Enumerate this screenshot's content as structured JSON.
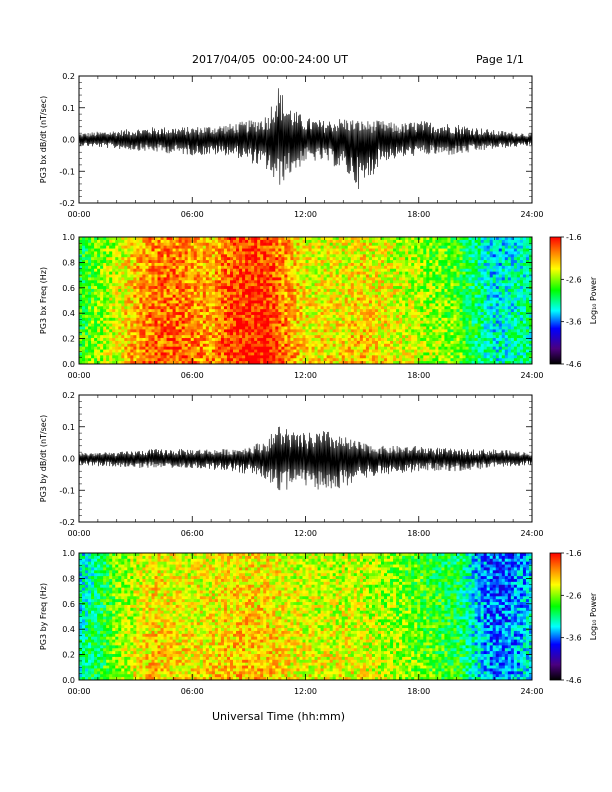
{
  "header": {
    "title": "2017/04/05  00:00-24:00 UT",
    "page": "Page 1/1"
  },
  "xlabel": "Universal Time (hh:mm)",
  "colors": {
    "waveform": "#000000",
    "colormap": [
      "#000000",
      "#4b007f",
      "#0000ff",
      "#00ffff",
      "#00ff00",
      "#ffff00",
      "#ff7f00",
      "#ff0000"
    ]
  },
  "colorbar": {
    "label": "Log₁₀ Power",
    "ticks": [
      "-1.6",
      "-2.6",
      "-3.6",
      "-4.6"
    ],
    "range": [
      -4.6,
      -1.6
    ]
  },
  "chart_data": [
    {
      "type": "line",
      "ylabel": "PG3 bx dB/dt (nT/sec)",
      "xlim": [
        0,
        24
      ],
      "ylim": [
        -0.2,
        0.2
      ],
      "xticks": [
        "00:00",
        "06:00",
        "12:00",
        "18:00",
        "24:00"
      ],
      "yticks": [
        "0.2",
        "0.1",
        "0.0",
        "-0.1",
        "-0.2"
      ],
      "envelope": {
        "hours": [
          0,
          2,
          4,
          6,
          8,
          9,
          10,
          10.5,
          11,
          11.5,
          12,
          13,
          14,
          15,
          16,
          17,
          18,
          20,
          22,
          24
        ],
        "upper": [
          0.02,
          0.03,
          0.04,
          0.04,
          0.05,
          0.06,
          0.08,
          0.18,
          0.12,
          0.09,
          0.07,
          0.06,
          0.07,
          0.06,
          0.06,
          0.05,
          0.06,
          0.05,
          0.03,
          0.02
        ],
        "lower": [
          -0.02,
          -0.03,
          -0.04,
          -0.05,
          -0.05,
          -0.07,
          -0.1,
          -0.16,
          -0.12,
          -0.1,
          -0.07,
          -0.07,
          -0.1,
          -0.17,
          -0.07,
          -0.06,
          -0.05,
          -0.05,
          -0.03,
          -0.02
        ]
      }
    },
    {
      "type": "heatmap",
      "ylabel": "PG3 bx Freq (Hz)",
      "xlim": [
        0,
        24
      ],
      "ylim": [
        0,
        1
      ],
      "xticks": [
        "00:00",
        "06:00",
        "12:00",
        "18:00",
        "24:00"
      ],
      "yticks": [
        "1.0",
        "0.8",
        "0.6",
        "0.4",
        "0.2",
        "0.0"
      ],
      "power_profile": {
        "hours": [
          0,
          1,
          2,
          3,
          4,
          5,
          6,
          7,
          8,
          9,
          10,
          11,
          12,
          13,
          14,
          15,
          16,
          17,
          18,
          19,
          20,
          21,
          22,
          23,
          24
        ],
        "log_power": [
          -3.2,
          -2.9,
          -2.7,
          -2.4,
          -2.2,
          -2.2,
          -2.3,
          -2.4,
          -2.1,
          -2.0,
          -2.0,
          -2.3,
          -2.6,
          -2.6,
          -2.6,
          -2.5,
          -2.6,
          -2.7,
          -2.8,
          -2.9,
          -3.0,
          -3.3,
          -3.6,
          -3.5,
          -3.4
        ]
      }
    },
    {
      "type": "line",
      "ylabel": "PG3 by dB/dt (nT/sec)",
      "xlim": [
        0,
        24
      ],
      "ylim": [
        -0.2,
        0.2
      ],
      "xticks": [
        "00:00",
        "06:00",
        "12:00",
        "18:00",
        "24:00"
      ],
      "yticks": [
        "0.2",
        "0.1",
        "0.0",
        "-0.1",
        "-0.2"
      ],
      "envelope": {
        "hours": [
          0,
          2,
          4,
          6,
          8,
          9,
          10,
          10.5,
          11,
          11.5,
          12,
          13,
          14,
          15,
          16,
          17,
          18,
          20,
          22,
          24
        ],
        "upper": [
          0.02,
          0.02,
          0.03,
          0.03,
          0.03,
          0.04,
          0.06,
          0.11,
          0.1,
          0.08,
          0.08,
          0.09,
          0.07,
          0.05,
          0.04,
          0.04,
          0.04,
          0.03,
          0.03,
          0.02
        ],
        "lower": [
          -0.02,
          -0.03,
          -0.03,
          -0.03,
          -0.04,
          -0.05,
          -0.07,
          -0.1,
          -0.1,
          -0.08,
          -0.1,
          -0.11,
          -0.09,
          -0.07,
          -0.05,
          -0.05,
          -0.04,
          -0.04,
          -0.03,
          -0.02
        ]
      }
    },
    {
      "type": "heatmap",
      "ylabel": "PG3 by Freq (Hz)",
      "xlim": [
        0,
        24
      ],
      "ylim": [
        0,
        1
      ],
      "xticks": [
        "00:00",
        "06:00",
        "12:00",
        "18:00",
        "24:00"
      ],
      "yticks": [
        "1.0",
        "0.8",
        "0.6",
        "0.4",
        "0.2",
        "0.0"
      ],
      "power_profile": {
        "hours": [
          0,
          1,
          2,
          3,
          4,
          5,
          6,
          7,
          8,
          9,
          10,
          11,
          12,
          13,
          14,
          15,
          16,
          17,
          18,
          19,
          20,
          21,
          22,
          23,
          24
        ],
        "log_power": [
          -3.5,
          -3.3,
          -2.9,
          -2.7,
          -2.5,
          -2.6,
          -2.6,
          -2.6,
          -2.5,
          -2.5,
          -2.5,
          -2.6,
          -2.7,
          -2.7,
          -2.7,
          -2.7,
          -2.8,
          -2.9,
          -3.0,
          -3.1,
          -3.2,
          -3.6,
          -3.9,
          -3.8,
          -3.6
        ]
      }
    }
  ]
}
